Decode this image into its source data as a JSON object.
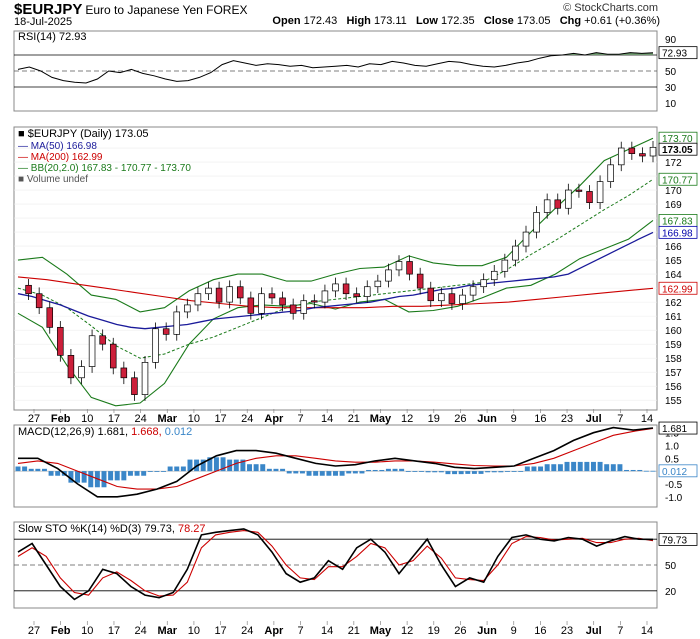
{
  "header": {
    "symbol": "$EURJPY",
    "name": "Euro to Japanese Yen FOREX",
    "date": "18-Jul-2025",
    "open_label": "Open",
    "open": "172.43",
    "high_label": "High",
    "high": "173.11",
    "low_label": "Low",
    "low": "172.35",
    "close_label": "Close",
    "close": "173.05",
    "chg_label": "Chg",
    "chg": "+0.61 (+0.36%)",
    "watermark": "© StockCharts.com"
  },
  "chart_data": [
    {
      "type": "line",
      "panel": "rsi",
      "legend": "RSI(14) 72.93",
      "ylim": [
        0,
        100
      ],
      "ticks": [
        10,
        30,
        50,
        70,
        90
      ],
      "reference_lines": [
        30,
        50,
        70
      ],
      "last_value_label": "72.93",
      "values": [
        52,
        55,
        50,
        42,
        38,
        36,
        35,
        40,
        50,
        48,
        52,
        47,
        44,
        40,
        37,
        38,
        42,
        48,
        58,
        63,
        60,
        57,
        59,
        58,
        56,
        57,
        54,
        55,
        56,
        57,
        55,
        59,
        58,
        62,
        60,
        57,
        56,
        59,
        62,
        61,
        58,
        56,
        55,
        57,
        60,
        62,
        66,
        69,
        70,
        72,
        70,
        73,
        71,
        71,
        73,
        72,
        72.93
      ]
    },
    {
      "type": "candlestick",
      "panel": "price",
      "legend": {
        "title": "$EURJPY (Daily) 173.05",
        "ma50": "MA(50) 166.98",
        "ma200": "MA(200) 162.99",
        "bb": "BB(20,2.0) 167.83 - 170.77 - 173.70",
        "volume": "Volume undef"
      },
      "ylim": [
        154.3,
        174.5
      ],
      "ticks": [
        155,
        156,
        157,
        158,
        159,
        160,
        161,
        162,
        163,
        164,
        165,
        166,
        167,
        168,
        169,
        170,
        171,
        172,
        173
      ],
      "price_labels": [
        {
          "value": 173.7,
          "text": "173.70",
          "color": "#1a7a1a"
        },
        {
          "value": 173.05,
          "text": "173.05",
          "color": "#000000",
          "bold": true
        },
        {
          "value": 170.77,
          "text": "170.77",
          "color": "#1a7a1a"
        },
        {
          "value": 167.83,
          "text": "167.83",
          "color": "#1a7a1a"
        },
        {
          "value": 166.98,
          "text": "166.98",
          "color": "#0000aa"
        },
        {
          "value": 162.99,
          "text": "162.99",
          "color": "#cc0000"
        }
      ],
      "closes": [
        163.2,
        162.6,
        161.6,
        160.2,
        158.2,
        156.6,
        157.4,
        159.6,
        159.0,
        157.3,
        156.6,
        155.4,
        157.7,
        160.1,
        159.7,
        161.3,
        161.8,
        162.6,
        163.0,
        162.0,
        163.1,
        162.3,
        161.2,
        162.6,
        162.3,
        161.8,
        161.2,
        162.1,
        162.0,
        162.8,
        163.3,
        162.6,
        162.4,
        163.1,
        163.5,
        164.3,
        164.9,
        164.0,
        163.0,
        162.1,
        162.6,
        161.9,
        162.5,
        163.1,
        163.6,
        164.2,
        165.0,
        166.0,
        167.0,
        168.4,
        169.3,
        168.7,
        170.0,
        169.9,
        169.1,
        170.6,
        171.8,
        173.0,
        172.6,
        172.43,
        173.05
      ],
      "ma50": [
        162.6,
        162.4,
        162.1,
        161.8,
        161.4,
        161.0,
        160.7,
        160.4,
        160.2,
        160.1,
        160.2,
        160.3,
        160.4,
        160.6,
        160.8,
        160.9,
        161.0,
        161.1,
        161.2,
        161.3,
        161.4,
        161.6,
        161.7,
        161.8,
        161.9,
        162.0,
        162.2,
        162.4,
        162.5,
        162.7,
        162.9,
        163.0,
        163.2,
        163.3,
        163.4,
        163.5,
        163.6,
        163.7,
        163.8,
        164.0,
        164.5,
        165.0,
        165.5,
        166.0,
        166.5,
        166.98
      ],
      "ma200": [
        163.8,
        163.6,
        163.3,
        163.0,
        162.7,
        162.4,
        162.1,
        161.9,
        161.7,
        161.6,
        161.6,
        161.6,
        161.6,
        161.7,
        161.7,
        161.8,
        161.9,
        162.0,
        162.2,
        162.4,
        162.6,
        162.8,
        162.99
      ],
      "bb_mid": [
        163.0,
        162.5,
        161.6,
        160.3,
        158.9,
        158.0,
        158.3,
        159.0,
        159.5,
        160.2,
        160.9,
        161.6,
        162.0,
        162.2,
        162.4,
        162.6,
        162.8,
        163.0,
        163.2,
        163.4,
        164.3,
        165.4,
        166.4,
        167.5,
        168.6,
        169.6,
        170.77
      ],
      "bb_upper": [
        165.0,
        165.2,
        164.0,
        162.5,
        162.2,
        161.3,
        161.6,
        162.8,
        163.6,
        164.0,
        164.0,
        163.5,
        163.5,
        164.0,
        164.4,
        164.5,
        165.3,
        164.8,
        164.6,
        164.6,
        165.2,
        167.0,
        168.7,
        170.3,
        172.1,
        172.9,
        173.7
      ],
      "bb_lower": [
        161.2,
        160.2,
        157.5,
        155.2,
        154.6,
        154.8,
        156.2,
        159.0,
        160.8,
        161.6,
        161.8,
        161.7,
        161.9,
        161.5,
        162.0,
        162.2,
        161.3,
        161.4,
        161.7,
        162.3,
        163.0,
        163.2,
        164.0,
        165.1,
        165.8,
        166.5,
        167.83
      ],
      "x_labels": [
        "27",
        "Feb",
        "10",
        "17",
        "24",
        "Mar",
        "10",
        "17",
        "24",
        "Apr",
        "7",
        "14",
        "21",
        "May",
        "12",
        "19",
        "26",
        "Jun",
        "9",
        "16",
        "23",
        "Jul",
        "7",
        "14"
      ],
      "x_label_bold": [
        "Feb",
        "Mar",
        "Apr",
        "May",
        "Jun",
        "Jul"
      ]
    },
    {
      "type": "line",
      "panel": "macd",
      "legend": {
        "prefix": "MACD(12,26,9)",
        "macd": "1.681",
        "signal": "1.668",
        "hist": "0.012"
      },
      "ylim": [
        -1.4,
        1.8
      ],
      "ticks": [
        -1.0,
        -0.5,
        0.0,
        0.5,
        1.0,
        1.5
      ],
      "tick_labels": [
        "-1.0",
        "-0.5",
        "0.0",
        "0.5",
        "1.0",
        "1.5"
      ],
      "macd": [
        0.5,
        0.5,
        0.1,
        -0.5,
        -1.0,
        -1.0,
        -0.9,
        -0.7,
        -0.4,
        0.2,
        0.6,
        0.8,
        0.8,
        0.7,
        0.5,
        0.3,
        0.2,
        0.25,
        0.4,
        0.5,
        0.4,
        0.3,
        0.15,
        0.1,
        0.15,
        0.2,
        0.5,
        0.8,
        1.2,
        1.5,
        1.7,
        1.6,
        1.681
      ],
      "signal": [
        0.3,
        0.4,
        0.3,
        0.0,
        -0.3,
        -0.6,
        -0.7,
        -0.7,
        -0.6,
        -0.3,
        0.0,
        0.3,
        0.5,
        0.6,
        0.6,
        0.5,
        0.4,
        0.35,
        0.35,
        0.4,
        0.4,
        0.35,
        0.28,
        0.22,
        0.2,
        0.2,
        0.3,
        0.5,
        0.8,
        1.1,
        1.4,
        1.55,
        1.668
      ],
      "last_labels": [
        "1.681",
        "0.012"
      ]
    },
    {
      "type": "line",
      "panel": "stochastic",
      "legend": {
        "prefix": "Slow STO %K(14) %D(3)",
        "k": "79.73",
        "d": "78.27"
      },
      "ylim": [
        0,
        100
      ],
      "ticks": [
        20,
        50,
        80
      ],
      "k": [
        65,
        75,
        50,
        25,
        10,
        20,
        45,
        40,
        25,
        15,
        12,
        18,
        45,
        85,
        88,
        90,
        92,
        85,
        65,
        40,
        30,
        35,
        55,
        45,
        70,
        80,
        65,
        40,
        60,
        80,
        50,
        25,
        35,
        30,
        60,
        82,
        85,
        80,
        78,
        82,
        80,
        72,
        78,
        83,
        80,
        79.73
      ],
      "d": [
        60,
        70,
        60,
        35,
        18,
        15,
        35,
        42,
        32,
        20,
        14,
        15,
        30,
        70,
        85,
        88,
        90,
        88,
        72,
        50,
        35,
        33,
        48,
        48,
        60,
        75,
        70,
        50,
        55,
        72,
        58,
        35,
        33,
        32,
        50,
        75,
        83,
        82,
        79,
        80,
        81,
        76,
        76,
        80,
        81,
        78.27
      ],
      "last_label": "79.73"
    }
  ]
}
